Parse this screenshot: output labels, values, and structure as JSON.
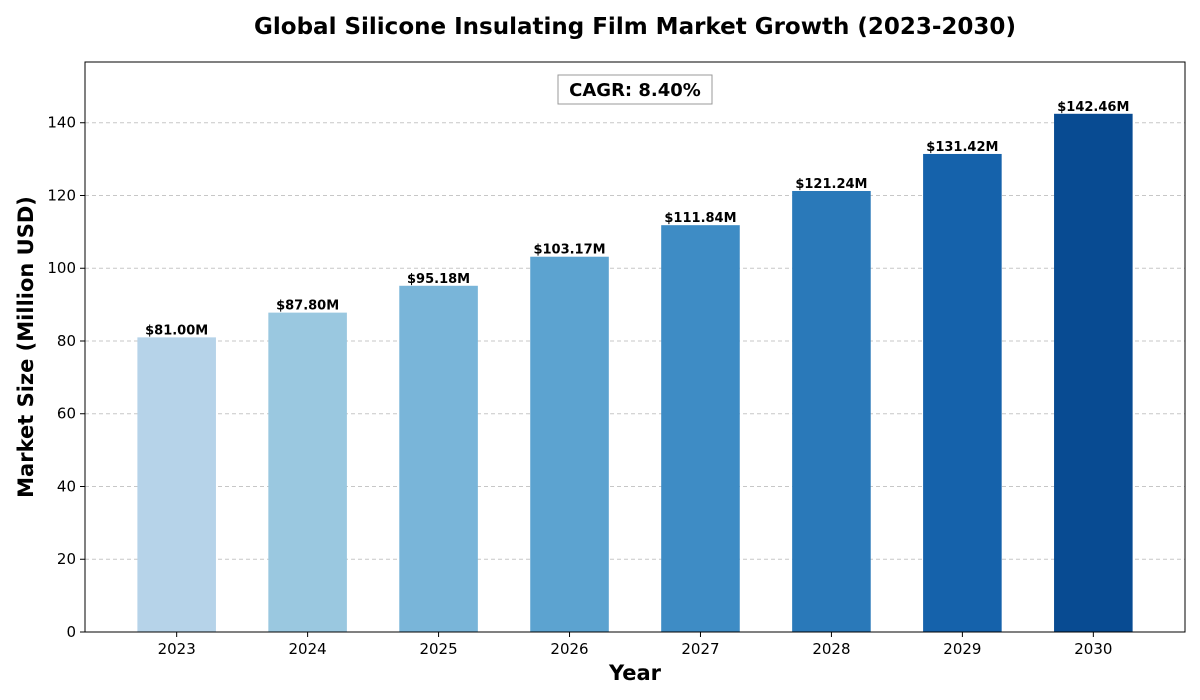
{
  "chart_data": {
    "type": "bar",
    "title": "Global Silicone Insulating Film Market Growth (2023-2030)",
    "xlabel": "Year",
    "ylabel": "Market Size (Million USD)",
    "categories": [
      "2023",
      "2024",
      "2025",
      "2026",
      "2027",
      "2028",
      "2029",
      "2030"
    ],
    "values": [
      81.0,
      87.8,
      95.18,
      103.17,
      111.84,
      121.24,
      131.42,
      142.46
    ],
    "value_labels": [
      "$81.00M",
      "$87.80M",
      "$95.18M",
      "$103.17M",
      "$111.84M",
      "$121.24M",
      "$131.42M",
      "$142.46M"
    ],
    "bar_colors": [
      "#b6d3e9",
      "#9ac8e0",
      "#79b5d9",
      "#5ca3d0",
      "#3e8cc5",
      "#2a79b9",
      "#1562ab",
      "#084b92"
    ],
    "ylim": [
      0,
      156.7
    ],
    "yticks": [
      0,
      20,
      40,
      60,
      80,
      100,
      120,
      140
    ],
    "grid": "y-dashed",
    "annotation": "CAGR: 8.40%"
  }
}
